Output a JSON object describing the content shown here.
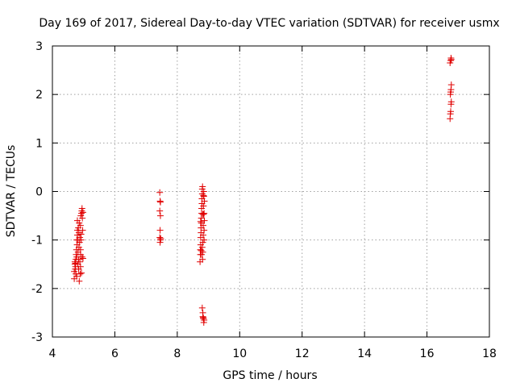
{
  "chart_data": {
    "type": "scatter",
    "title": "Day 169 of 2017, Sidereal Day-to-day VTEC variation (SDTVAR) for receiver usmx",
    "xlabel": "GPS time / hours",
    "ylabel": "SDTVAR / TECUs",
    "xlim": [
      4,
      18
    ],
    "ylim": [
      -3,
      3
    ],
    "xticks": [
      "4",
      "6",
      "8",
      "10",
      "12",
      "14",
      "16",
      "18"
    ],
    "yticks": [
      "-3",
      "-2",
      "-1",
      "0",
      "1",
      "2",
      "3"
    ],
    "grid": true,
    "marker": "plus",
    "color": "#e00000",
    "series": [
      {
        "name": "SDTVAR",
        "points": [
          [
            4.7,
            -1.8
          ],
          [
            4.7,
            -1.65
          ],
          [
            4.72,
            -1.5
          ],
          [
            4.72,
            -1.45
          ],
          [
            4.73,
            -1.6
          ],
          [
            4.74,
            -1.55
          ],
          [
            4.75,
            -1.7
          ],
          [
            4.75,
            -1.4
          ],
          [
            4.76,
            -1.3
          ],
          [
            4.77,
            -1.2
          ],
          [
            4.78,
            -1.75
          ],
          [
            4.78,
            -1.35
          ],
          [
            4.79,
            -1.1
          ],
          [
            4.8,
            -0.9
          ],
          [
            4.8,
            -0.8
          ],
          [
            4.8,
            -0.6
          ],
          [
            4.81,
            -1.5
          ],
          [
            4.82,
            -1.25
          ],
          [
            4.82,
            -1.0
          ],
          [
            4.83,
            -0.75
          ],
          [
            4.84,
            -1.6
          ],
          [
            4.84,
            -1.4
          ],
          [
            4.85,
            -1.15
          ],
          [
            4.85,
            -0.85
          ],
          [
            4.86,
            -0.65
          ],
          [
            4.87,
            -1.05
          ],
          [
            4.88,
            -0.95
          ],
          [
            4.88,
            -1.45
          ],
          [
            4.89,
            -1.7
          ],
          [
            4.9,
            -1.55
          ],
          [
            4.9,
            -1.3
          ],
          [
            4.9,
            -0.7
          ],
          [
            4.91,
            -0.5
          ],
          [
            4.92,
            -1.0
          ],
          [
            4.92,
            -0.88
          ],
          [
            4.93,
            -0.45
          ],
          [
            4.94,
            -0.4
          ],
          [
            4.95,
            -0.35
          ],
          [
            4.95,
            -1.35
          ],
          [
            4.96,
            -0.55
          ],
          [
            4.97,
            -0.8
          ],
          [
            4.98,
            -0.43
          ],
          [
            4.98,
            -1.38
          ],
          [
            4.9,
            -1.2
          ],
          [
            4.86,
            -1.85
          ],
          [
            4.78,
            -1.0
          ],
          [
            4.74,
            -1.48
          ],
          [
            4.93,
            -1.68
          ],
          [
            7.44,
            -0.02
          ],
          [
            7.45,
            -0.2
          ],
          [
            7.46,
            -0.22
          ],
          [
            7.44,
            -0.4
          ],
          [
            7.46,
            -0.5
          ],
          [
            7.45,
            -0.8
          ],
          [
            7.44,
            -0.95
          ],
          [
            7.46,
            -1.0
          ],
          [
            7.45,
            -1.05
          ],
          [
            7.47,
            -0.97
          ],
          [
            8.73,
            -1.45
          ],
          [
            8.74,
            -1.3
          ],
          [
            8.74,
            -1.2
          ],
          [
            8.75,
            -1.1
          ],
          [
            8.75,
            -0.95
          ],
          [
            8.76,
            -0.85
          ],
          [
            8.76,
            -0.75
          ],
          [
            8.77,
            -0.65
          ],
          [
            8.77,
            -0.55
          ],
          [
            8.78,
            -0.45
          ],
          [
            8.78,
            -0.35
          ],
          [
            8.79,
            -0.25
          ],
          [
            8.79,
            -0.15
          ],
          [
            8.8,
            -0.05
          ],
          [
            8.8,
            0.05
          ],
          [
            8.81,
            0.1
          ],
          [
            8.81,
            -1.4
          ],
          [
            8.82,
            -1.25
          ],
          [
            8.82,
            -1.05
          ],
          [
            8.83,
            -0.9
          ],
          [
            8.83,
            -0.7
          ],
          [
            8.84,
            -0.47
          ],
          [
            8.84,
            -0.3
          ],
          [
            8.85,
            -0.1
          ],
          [
            8.85,
            0.0
          ],
          [
            8.86,
            -1.0
          ],
          [
            8.86,
            -0.8
          ],
          [
            8.87,
            -0.6
          ],
          [
            8.87,
            -0.2
          ],
          [
            8.78,
            -1.3
          ],
          [
            8.8,
            -1.15
          ],
          [
            8.82,
            -0.47
          ],
          [
            8.84,
            -0.08
          ],
          [
            8.86,
            -0.45
          ],
          [
            8.75,
            -0.62
          ],
          [
            8.77,
            -1.22
          ],
          [
            8.8,
            -2.4
          ],
          [
            8.82,
            -2.5
          ],
          [
            8.83,
            -2.6
          ],
          [
            8.84,
            -2.62
          ],
          [
            8.86,
            -2.65
          ],
          [
            8.85,
            -2.7
          ],
          [
            8.82,
            -2.58
          ],
          [
            16.74,
            1.5
          ],
          [
            16.75,
            1.6
          ],
          [
            16.76,
            1.65
          ],
          [
            16.77,
            1.8
          ],
          [
            16.78,
            1.85
          ],
          [
            16.75,
            2.0
          ],
          [
            16.76,
            2.05
          ],
          [
            16.77,
            2.1
          ],
          [
            16.78,
            2.2
          ],
          [
            16.74,
            2.65
          ],
          [
            16.76,
            2.7
          ],
          [
            16.77,
            2.75
          ],
          [
            16.78,
            2.72
          ]
        ]
      }
    ]
  }
}
